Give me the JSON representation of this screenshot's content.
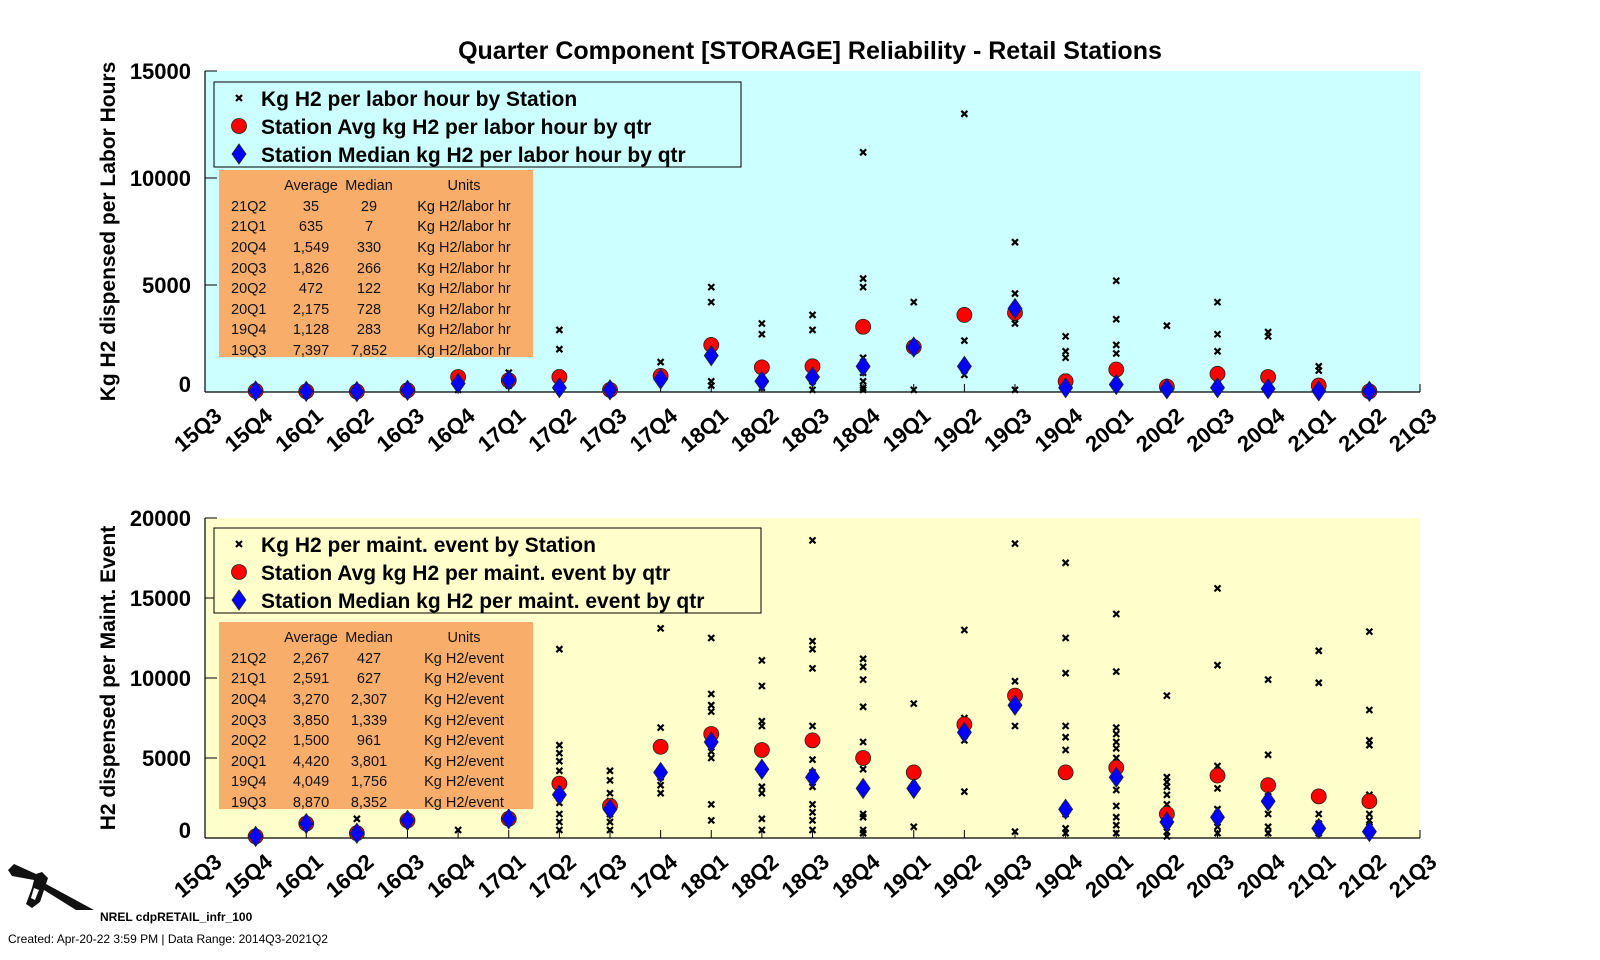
{
  "title": "Quarter Component [STORAGE] Reliability - Retail Stations",
  "footer": {
    "label": "NREL cdpRETAIL_infr_100",
    "created": "Created: Apr-20-22  3:59 PM | Data Range: 2014Q3-2021Q2"
  },
  "colors": {
    "top_bg": "#ccffff",
    "bottom_bg": "#ffffcc",
    "table_bg": "#f9ad6b",
    "avg": "#ff0000",
    "median": "#0000ff"
  },
  "chart_data": [
    {
      "type": "scatter",
      "ylabel": "Kg H2 dispensed per Labor Hours",
      "ylim": [
        0,
        15000
      ],
      "yticks": [
        "0",
        "5000",
        "10000",
        "15000"
      ],
      "ytick_values": [
        0,
        5000,
        10000,
        15000
      ],
      "categories": [
        "15Q3",
        "15Q4",
        "16Q1",
        "16Q2",
        "16Q3",
        "16Q4",
        "17Q1",
        "17Q2",
        "17Q3",
        "17Q4",
        "18Q1",
        "18Q2",
        "18Q3",
        "18Q4",
        "19Q1",
        "19Q2",
        "19Q3",
        "19Q4",
        "20Q1",
        "20Q2",
        "20Q3",
        "20Q4",
        "21Q1",
        "21Q2",
        "21Q3"
      ],
      "legend": [
        "Kg H2 per labor hour by Station",
        "Station Avg kg H2 per labor hour by qtr",
        "Station Median kg H2 per labor hour by qtr"
      ],
      "legend_position": "top-left",
      "average": [
        null,
        50,
        30,
        20,
        80,
        700,
        550,
        700,
        100,
        750,
        2200,
        1150,
        1200,
        3050,
        2100,
        3600,
        3700,
        500,
        1050,
        250,
        850,
        700,
        300,
        30,
        null
      ],
      "median": [
        null,
        50,
        30,
        20,
        80,
        400,
        550,
        200,
        100,
        600,
        1700,
        500,
        700,
        1200,
        2100,
        1200,
        3900,
        200,
        350,
        150,
        200,
        150,
        50,
        30,
        null
      ],
      "stations": [
        [],
        [
          50
        ],
        [
          30
        ],
        [
          20
        ],
        [
          80
        ],
        [
          800,
          100
        ],
        [
          900,
          300
        ],
        [
          2900,
          2000,
          900,
          300,
          100
        ],
        [
          100
        ],
        [
          1400,
          600
        ],
        [
          4900,
          4200,
          2300,
          500,
          300
        ],
        [
          3200,
          2700,
          1200,
          500,
          200
        ],
        [
          3600,
          2900,
          1200,
          500,
          100
        ],
        [
          11200,
          5300,
          4900,
          3100,
          1600,
          900,
          500,
          200,
          100
        ],
        [
          4200,
          100
        ],
        [
          13000,
          2400,
          800
        ],
        [
          7000,
          4600,
          3400,
          3200,
          100
        ],
        [
          2600,
          1900,
          1600,
          700,
          200
        ],
        [
          5200,
          3400,
          2200,
          1800,
          1000,
          300
        ],
        [
          3100,
          200
        ],
        [
          4200,
          2700,
          1900,
          600,
          100
        ],
        [
          2800,
          2600,
          300
        ],
        [
          1200,
          1000,
          100
        ],
        [
          50
        ],
        []
      ],
      "table": {
        "headers": [
          "",
          "Average",
          "Median",
          "Units"
        ],
        "rows": [
          [
            "21Q2",
            "35",
            "29",
            "Kg H2/labor hr"
          ],
          [
            "21Q1",
            "635",
            "7",
            "Kg H2/labor hr"
          ],
          [
            "20Q4",
            "1,549",
            "330",
            "Kg H2/labor hr"
          ],
          [
            "20Q3",
            "1,826",
            "266",
            "Kg H2/labor hr"
          ],
          [
            "20Q2",
            "472",
            "122",
            "Kg H2/labor hr"
          ],
          [
            "20Q1",
            "2,175",
            "728",
            "Kg H2/labor hr"
          ],
          [
            "19Q4",
            "1,128",
            "283",
            "Kg H2/labor hr"
          ],
          [
            "19Q3",
            "7,397",
            "7,852",
            "Kg H2/labor hr"
          ]
        ]
      }
    },
    {
      "type": "scatter",
      "ylabel": "H2 dispensed per Maint. Event",
      "ylim": [
        0,
        20000
      ],
      "yticks": [
        "0",
        "5000",
        "10000",
        "15000",
        "20000"
      ],
      "ytick_values": [
        0,
        5000,
        10000,
        15000,
        20000
      ],
      "categories": [
        "15Q3",
        "15Q4",
        "16Q1",
        "16Q2",
        "16Q3",
        "16Q4",
        "17Q1",
        "17Q2",
        "17Q3",
        "17Q4",
        "18Q1",
        "18Q2",
        "18Q3",
        "18Q4",
        "19Q1",
        "19Q2",
        "19Q3",
        "19Q4",
        "20Q1",
        "20Q2",
        "20Q3",
        "20Q4",
        "21Q1",
        "21Q2",
        "21Q3"
      ],
      "legend": [
        "Kg H2 per maint. event by Station",
        "Station Avg kg H2 per maint. event by qtr",
        "Station Median kg H2 per maint. event by qtr"
      ],
      "legend_position": "top-left",
      "average": [
        null,
        100,
        900,
        300,
        1100,
        null,
        1200,
        3400,
        2000,
        5700,
        6500,
        5500,
        6100,
        5000,
        4100,
        7100,
        8900,
        4100,
        4400,
        1500,
        3900,
        3300,
        2600,
        2300,
        null
      ],
      "median": [
        null,
        100,
        900,
        300,
        1100,
        null,
        1200,
        2700,
        1800,
        4100,
        6000,
        4300,
        3800,
        3100,
        3100,
        6600,
        8300,
        1800,
        3800,
        1000,
        1300,
        2300,
        600,
        400,
        null
      ],
      "stations": [
        [],
        [
          100
        ],
        [
          900
        ],
        [
          1200,
          300
        ],
        [
          1200
        ],
        [
          500
        ],
        [
          1200
        ],
        [
          11800,
          5800,
          5300,
          4800,
          4200,
          3600,
          2200,
          1500,
          1000,
          500
        ],
        [
          4200,
          3600,
          2800,
          2300,
          1500,
          1000,
          500
        ],
        [
          13100,
          6900,
          3800,
          3300,
          2800
        ],
        [
          12500,
          9000,
          8300,
          7900,
          6700,
          5400,
          5000,
          2100,
          1100
        ],
        [
          11100,
          9500,
          7300,
          7000,
          4500,
          3200,
          2800,
          1200,
          500
        ],
        [
          18600,
          12300,
          11800,
          10600,
          7000,
          6000,
          4900,
          4100,
          3200,
          2100,
          1600,
          1100,
          500
        ],
        [
          11200,
          10700,
          9900,
          8200,
          6000,
          4300,
          1500,
          1300,
          500,
          300
        ],
        [
          8400,
          700
        ],
        [
          13000,
          7500,
          6100,
          2900
        ],
        [
          18400,
          9800,
          7000,
          400
        ],
        [
          17200,
          12500,
          10300,
          7000,
          6300,
          5500,
          2000,
          1500,
          600,
          300
        ],
        [
          14000,
          10400,
          6900,
          6500,
          6000,
          5600,
          5000,
          4600,
          3000,
          2000,
          1300,
          800,
          300
        ],
        [
          8900,
          3800,
          3500,
          3200,
          2700,
          2100,
          1500,
          800,
          400,
          100
        ],
        [
          15600,
          10800,
          4500,
          4100,
          3100,
          1800,
          1300,
          700,
          300
        ],
        [
          9900,
          5200,
          3300,
          2600,
          1500,
          700,
          300
        ],
        [
          11700,
          9700,
          1500,
          900,
          300
        ],
        [
          12900,
          8000,
          6100,
          5800,
          2700,
          1500,
          1100,
          700,
          300
        ],
        []
      ],
      "table": {
        "headers": [
          "",
          "Average",
          "Median",
          "Units"
        ],
        "rows": [
          [
            "21Q2",
            "2,267",
            "427",
            "Kg H2/event"
          ],
          [
            "21Q1",
            "2,591",
            "627",
            "Kg H2/event"
          ],
          [
            "20Q4",
            "3,270",
            "2,307",
            "Kg H2/event"
          ],
          [
            "20Q3",
            "3,850",
            "1,339",
            "Kg H2/event"
          ],
          [
            "20Q2",
            "1,500",
            "961",
            "Kg H2/event"
          ],
          [
            "20Q1",
            "4,420",
            "3,801",
            "Kg H2/event"
          ],
          [
            "19Q4",
            "4,049",
            "1,756",
            "Kg H2/event"
          ],
          [
            "19Q3",
            "8,870",
            "8,352",
            "Kg H2/event"
          ]
        ]
      }
    }
  ]
}
